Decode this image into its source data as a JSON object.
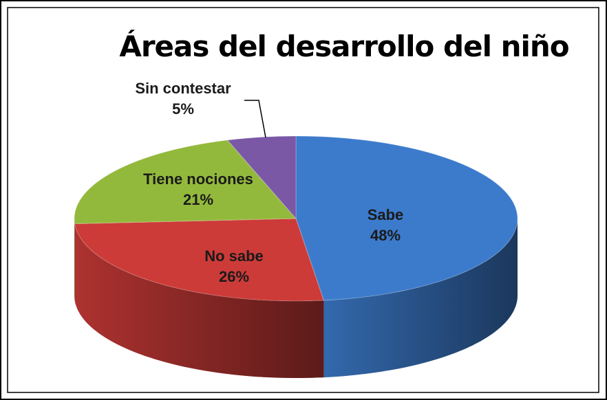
{
  "chart_data": {
    "type": "pie",
    "title": "Áreas del desarrollo del niño",
    "categories": [
      "Sabe",
      "No sabe",
      "Tiene nociones",
      "Sin contestar"
    ],
    "values": [
      48,
      26,
      21,
      5
    ],
    "value_labels": [
      "48%",
      "26%",
      "21%",
      "5%"
    ],
    "colors": [
      "#3c7bcc",
      "#cc3b38",
      "#93b93c",
      "#7b58a6"
    ]
  }
}
